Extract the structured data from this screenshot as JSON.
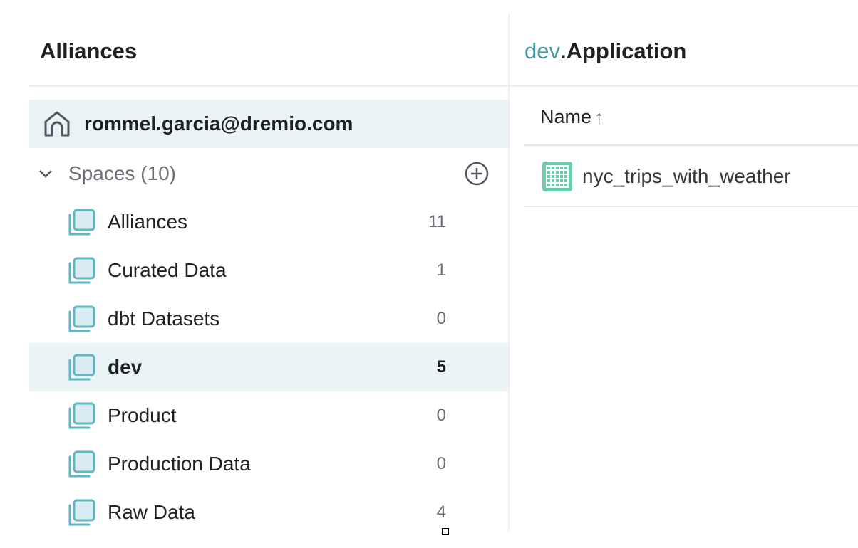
{
  "left_panel": {
    "title": "Alliances",
    "home": {
      "label": "rommel.garcia@dremio.com",
      "icon": "home-icon"
    },
    "spaces": {
      "label": "Spaces (10)",
      "expanded": true,
      "add_icon": "plus-circle-icon"
    },
    "items": [
      {
        "name": "Alliances",
        "count": "11"
      },
      {
        "name": "Curated Data",
        "count": "1"
      },
      {
        "name": "dbt Datasets",
        "count": "0"
      },
      {
        "name": "dev",
        "count": "5",
        "selected": true
      },
      {
        "name": "Product",
        "count": "0"
      },
      {
        "name": "Production Data",
        "count": "0"
      },
      {
        "name": "Raw Data",
        "count": "4"
      }
    ]
  },
  "right_panel": {
    "title_prefix": "dev",
    "title": ".Application",
    "column_header": "Name",
    "sort_icon": "arrow-up-icon",
    "sort_glyph": "↑",
    "rows": [
      {
        "name": "nyc_trips_with_weather",
        "icon": "table-dataset-icon"
      }
    ]
  },
  "colors": {
    "accent": "#43989e",
    "selected_bg": "#eaf3f5",
    "dataset_icon": "#6ccbae",
    "space_icon": "#5fb6c6"
  }
}
